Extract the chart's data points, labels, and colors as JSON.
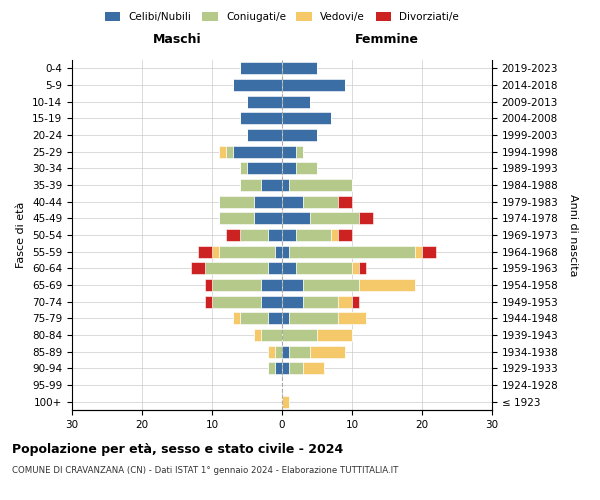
{
  "age_groups": [
    "100+",
    "95-99",
    "90-94",
    "85-89",
    "80-84",
    "75-79",
    "70-74",
    "65-69",
    "60-64",
    "55-59",
    "50-54",
    "45-49",
    "40-44",
    "35-39",
    "30-34",
    "25-29",
    "20-24",
    "15-19",
    "10-14",
    "5-9",
    "0-4"
  ],
  "birth_years": [
    "≤ 1923",
    "1924-1928",
    "1929-1933",
    "1934-1938",
    "1939-1943",
    "1944-1948",
    "1949-1953",
    "1954-1958",
    "1959-1963",
    "1964-1968",
    "1969-1973",
    "1974-1978",
    "1979-1983",
    "1984-1988",
    "1989-1993",
    "1994-1998",
    "1999-2003",
    "2004-2008",
    "2009-2013",
    "2014-2018",
    "2019-2023"
  ],
  "colors": {
    "celibi": "#3a6ea5",
    "coniugati": "#b5c98a",
    "vedovi": "#f5c96a",
    "divorziati": "#cc2222"
  },
  "males": {
    "celibi": [
      0,
      0,
      1,
      0,
      0,
      2,
      3,
      3,
      2,
      1,
      2,
      4,
      4,
      3,
      5,
      7,
      5,
      6,
      5,
      7,
      6
    ],
    "coniugati": [
      0,
      0,
      1,
      1,
      3,
      4,
      7,
      7,
      9,
      8,
      4,
      5,
      5,
      3,
      1,
      1,
      0,
      0,
      0,
      0,
      0
    ],
    "vedovi": [
      0,
      0,
      0,
      1,
      1,
      1,
      0,
      0,
      0,
      1,
      0,
      0,
      0,
      0,
      0,
      1,
      0,
      0,
      0,
      0,
      0
    ],
    "divorziati": [
      0,
      0,
      0,
      0,
      0,
      0,
      1,
      1,
      2,
      2,
      2,
      0,
      0,
      0,
      0,
      0,
      0,
      0,
      0,
      0,
      0
    ]
  },
  "females": {
    "celibi": [
      0,
      0,
      1,
      1,
      0,
      1,
      3,
      3,
      2,
      1,
      2,
      4,
      3,
      1,
      2,
      2,
      5,
      7,
      4,
      9,
      5
    ],
    "coniugati": [
      0,
      0,
      2,
      3,
      5,
      7,
      5,
      8,
      8,
      18,
      5,
      7,
      5,
      9,
      3,
      1,
      0,
      0,
      0,
      0,
      0
    ],
    "vedovi": [
      1,
      0,
      3,
      5,
      5,
      4,
      2,
      8,
      1,
      1,
      1,
      0,
      0,
      0,
      0,
      0,
      0,
      0,
      0,
      0,
      0
    ],
    "divorziati": [
      0,
      0,
      0,
      0,
      0,
      0,
      1,
      0,
      1,
      2,
      2,
      2,
      2,
      0,
      0,
      0,
      0,
      0,
      0,
      0,
      0
    ]
  },
  "title": "Popolazione per età, sesso e stato civile - 2024",
  "subtitle": "COMUNE DI CRAVANZANA (CN) - Dati ISTAT 1° gennaio 2024 - Elaborazione TUTTITALIA.IT",
  "xlabel_left": "Maschi",
  "xlabel_right": "Femmine",
  "ylabel_left": "Fasce di età",
  "ylabel_right": "Anni di nascita",
  "legend_labels": [
    "Celibi/Nubili",
    "Coniugati/e",
    "Vedovi/e",
    "Divorziati/e"
  ],
  "xlim": 30,
  "background_color": "#ffffff",
  "grid_color": "#cccccc"
}
